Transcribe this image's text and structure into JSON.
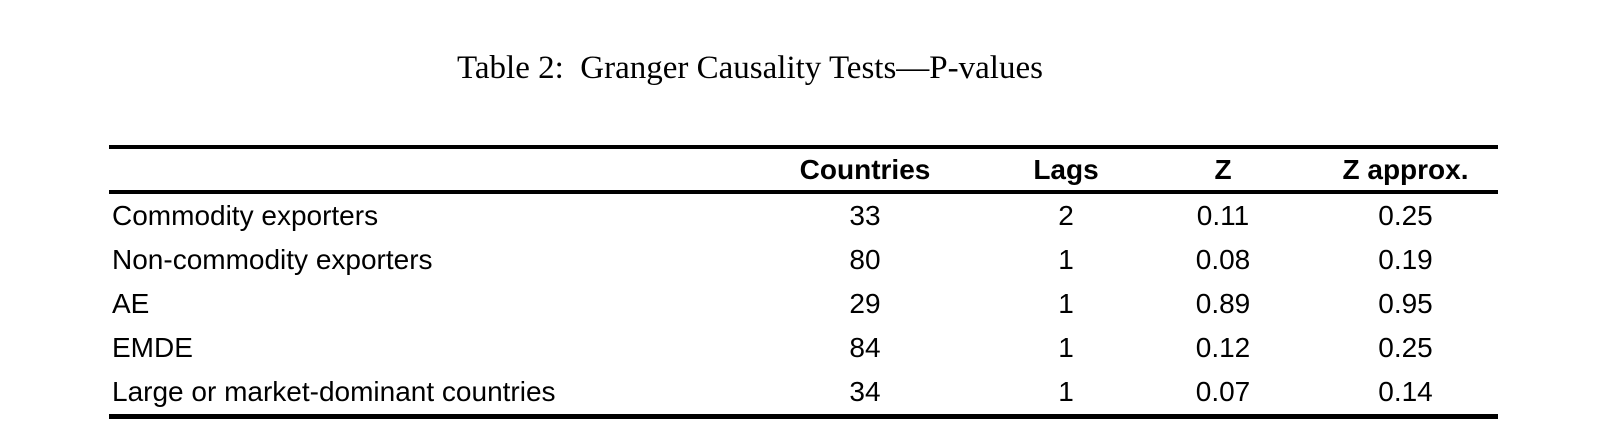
{
  "caption": "Table 2:  Granger Causality Tests—P-values",
  "table": {
    "headers": [
      "",
      "Countries",
      "Lags",
      "Z",
      "Z approx."
    ],
    "rows": [
      [
        "Commodity exporters",
        "33",
        "2",
        "0.11",
        "0.25"
      ],
      [
        "Non-commodity exporters",
        "80",
        "1",
        "0.08",
        "0.19"
      ],
      [
        "AE",
        "29",
        "1",
        "0.89",
        "0.95"
      ],
      [
        "EMDE",
        "84",
        "1",
        "0.12",
        "0.25"
      ],
      [
        "Large or market-dominant countries",
        "34",
        "1",
        "0.07",
        "0.14"
      ]
    ]
  },
  "colors": {
    "text": "#000000",
    "rule": "#000000",
    "background": "#ffffff"
  }
}
